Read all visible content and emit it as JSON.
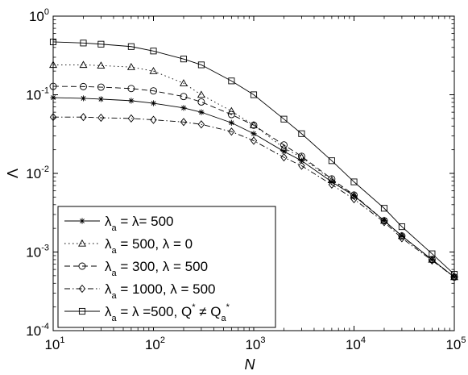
{
  "chart_data": {
    "type": "line",
    "xscale": "log",
    "yscale": "log",
    "xlim": [
      10,
      100000
    ],
    "ylim": [
      0.0001,
      1
    ],
    "xlabel": "N",
    "ylabel": "Λ",
    "grid": false,
    "legend_placement": "bottom-left",
    "x_ticks": [
      {
        "base": "10",
        "exp": "1"
      },
      {
        "base": "10",
        "exp": "2"
      },
      {
        "base": "10",
        "exp": "3"
      },
      {
        "base": "10",
        "exp": "4"
      },
      {
        "base": "10",
        "exp": "5"
      }
    ],
    "y_ticks": [
      {
        "base": "10",
        "exp": "-4"
      },
      {
        "base": "10",
        "exp": "-3"
      },
      {
        "base": "10",
        "exp": "-2"
      },
      {
        "base": "10",
        "exp": "-1"
      },
      {
        "base": "10",
        "exp": "0"
      }
    ],
    "series": [
      {
        "key": "s1",
        "label_parts": [
          [
            "λ",
            ""
          ],
          [
            "a",
            "sub"
          ],
          [
            " = λ= 500",
            ""
          ]
        ],
        "marker": "star",
        "dash": "none",
        "x": [
          10,
          20,
          30,
          60,
          100,
          200,
          300,
          600,
          1000,
          2000,
          3000,
          6000,
          10000,
          20000,
          30000,
          60000,
          100000
        ],
        "y": [
          0.092,
          0.09,
          0.088,
          0.084,
          0.078,
          0.068,
          0.06,
          0.044,
          0.032,
          0.019,
          0.0145,
          0.0078,
          0.0052,
          0.0025,
          0.0016,
          0.0008,
          0.00048
        ]
      },
      {
        "key": "s2",
        "label_parts": [
          [
            "λ",
            ""
          ],
          [
            "a",
            "sub"
          ],
          [
            " = 500, λ = 0",
            ""
          ]
        ],
        "marker": "triangle",
        "dash": "1.5,3.5",
        "x": [
          10,
          20,
          30,
          60,
          100,
          200,
          300,
          600,
          1000,
          2000,
          3000,
          6000,
          10000,
          20000,
          30000,
          60000,
          100000
        ],
        "y": [
          0.24,
          0.24,
          0.235,
          0.225,
          0.2,
          0.14,
          0.1,
          0.062,
          0.041,
          0.021,
          0.016,
          0.0082,
          0.0052,
          0.0025,
          0.0016,
          0.0008,
          0.00048
        ]
      },
      {
        "key": "s3",
        "label_parts": [
          [
            "λ",
            ""
          ],
          [
            "a",
            "sub"
          ],
          [
            " = 300, λ = 500",
            ""
          ]
        ],
        "marker": "circle",
        "dash": "7,4",
        "x": [
          10,
          20,
          30,
          60,
          100,
          200,
          300,
          600,
          1000,
          2000,
          3000,
          6000,
          10000,
          20000,
          30000,
          60000,
          100000
        ],
        "y": [
          0.128,
          0.127,
          0.125,
          0.12,
          0.112,
          0.095,
          0.081,
          0.056,
          0.041,
          0.023,
          0.0165,
          0.0085,
          0.0053,
          0.0025,
          0.0016,
          0.0008,
          0.00048
        ]
      },
      {
        "key": "s4",
        "label_parts": [
          [
            "λ",
            ""
          ],
          [
            "a",
            "sub"
          ],
          [
            " = 1000, λ = 500",
            ""
          ]
        ],
        "marker": "diamond",
        "dash": "7,3,1.5,3",
        "x": [
          10,
          20,
          30,
          60,
          100,
          200,
          300,
          600,
          1000,
          2000,
          3000,
          6000,
          10000,
          20000,
          30000,
          60000,
          100000
        ],
        "y": [
          0.052,
          0.052,
          0.051,
          0.05,
          0.048,
          0.045,
          0.042,
          0.034,
          0.026,
          0.016,
          0.0125,
          0.0072,
          0.0047,
          0.0024,
          0.0015,
          0.00078,
          0.00048
        ]
      },
      {
        "key": "s5",
        "label_parts": [
          [
            "λ",
            ""
          ],
          [
            "a",
            "sub"
          ],
          [
            " = λ =500,  ",
            ""
          ],
          [
            "Q",
            ""
          ],
          [
            "*",
            "sup"
          ],
          [
            " ≠ ",
            ""
          ],
          [
            "Q",
            ""
          ],
          [
            "a",
            "sub"
          ],
          [
            "*",
            "sup"
          ]
        ],
        "marker": "square",
        "dash": "none",
        "x": [
          10,
          20,
          30,
          60,
          100,
          200,
          300,
          600,
          1000,
          2000,
          3000,
          6000,
          10000,
          20000,
          30000,
          60000,
          100000
        ],
        "y": [
          0.47,
          0.455,
          0.44,
          0.41,
          0.36,
          0.285,
          0.24,
          0.15,
          0.1,
          0.049,
          0.032,
          0.0145,
          0.0078,
          0.0036,
          0.0021,
          0.00095,
          0.00052
        ]
      }
    ]
  }
}
